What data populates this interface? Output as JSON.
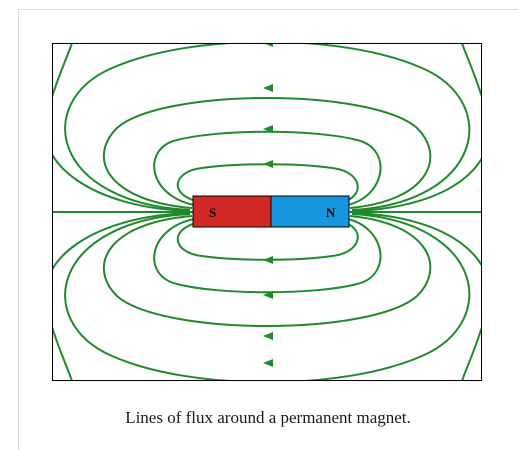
{
  "figure": {
    "magnet": {
      "south_label": "S",
      "north_label": "N",
      "south_color": "#d12a26",
      "north_color": "#1596de"
    },
    "field_line_color": "#1f8a2c",
    "border_color": "#000000"
  },
  "caption": "Lines of flux around a permanent magnet."
}
